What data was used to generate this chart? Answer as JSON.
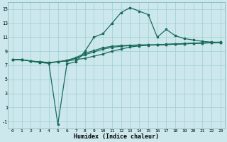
{
  "xlabel": "Humidex (Indice chaleur)",
  "background_color": "#cce8ec",
  "grid_color": "#9dcdd4",
  "line_color": "#1a6b5a",
  "xlim": [
    -0.5,
    23.5
  ],
  "ylim": [
    -2,
    16
  ],
  "xticks": [
    0,
    1,
    2,
    3,
    4,
    5,
    6,
    7,
    8,
    9,
    10,
    11,
    12,
    13,
    14,
    15,
    16,
    17,
    18,
    19,
    20,
    21,
    22,
    23
  ],
  "yticks": [
    -1,
    1,
    3,
    5,
    7,
    9,
    11,
    13,
    15
  ],
  "line1_x": [
    0,
    1,
    2,
    3,
    4,
    5,
    6,
    7,
    8,
    9,
    10,
    11,
    12,
    13,
    14,
    15,
    16,
    17,
    18,
    19,
    20,
    21,
    22,
    23
  ],
  "line1_y": [
    7.8,
    7.8,
    7.6,
    7.5,
    7.4,
    7.5,
    7.6,
    7.8,
    8.0,
    8.3,
    8.6,
    9.0,
    9.3,
    9.6,
    9.75,
    9.85,
    9.9,
    9.95,
    10.0,
    10.05,
    10.1,
    10.15,
    10.2,
    10.25
  ],
  "line2_x": [
    0,
    1,
    2,
    3,
    4,
    5,
    6,
    7,
    8,
    9,
    10,
    11,
    12,
    13,
    14,
    15,
    16,
    17,
    18,
    19,
    20,
    21,
    22,
    23
  ],
  "line2_y": [
    7.8,
    7.8,
    7.6,
    7.4,
    7.3,
    7.5,
    7.7,
    8.0,
    8.5,
    8.9,
    9.3,
    9.55,
    9.7,
    9.8,
    9.85,
    9.9,
    9.9,
    9.95,
    10.0,
    10.05,
    10.1,
    10.15,
    10.2,
    10.25
  ],
  "line3_x": [
    0,
    1,
    2,
    3,
    4,
    5,
    6,
    7,
    8,
    9,
    10,
    11,
    12,
    13,
    14,
    15,
    16,
    17,
    18,
    19,
    20,
    21,
    22,
    23
  ],
  "line3_y": [
    7.8,
    7.8,
    7.6,
    7.4,
    7.3,
    -1.4,
    7.2,
    7.5,
    9.0,
    11.0,
    11.5,
    13.0,
    14.5,
    15.2,
    14.7,
    14.2,
    11.0,
    12.1,
    11.2,
    10.8,
    10.6,
    10.4,
    10.3,
    10.25
  ],
  "line4_x": [
    0,
    1,
    2,
    3,
    4,
    5,
    6,
    7,
    8,
    9,
    10,
    11,
    12,
    13,
    14,
    15,
    16,
    17,
    18,
    19,
    20,
    21,
    22,
    23
  ],
  "line4_y": [
    7.8,
    7.8,
    7.6,
    7.5,
    7.4,
    7.5,
    7.7,
    8.1,
    8.7,
    9.1,
    9.5,
    9.7,
    9.8,
    9.85,
    9.9,
    9.9,
    9.9,
    10.0,
    10.05,
    10.1,
    10.15,
    10.2,
    10.25,
    10.3
  ]
}
